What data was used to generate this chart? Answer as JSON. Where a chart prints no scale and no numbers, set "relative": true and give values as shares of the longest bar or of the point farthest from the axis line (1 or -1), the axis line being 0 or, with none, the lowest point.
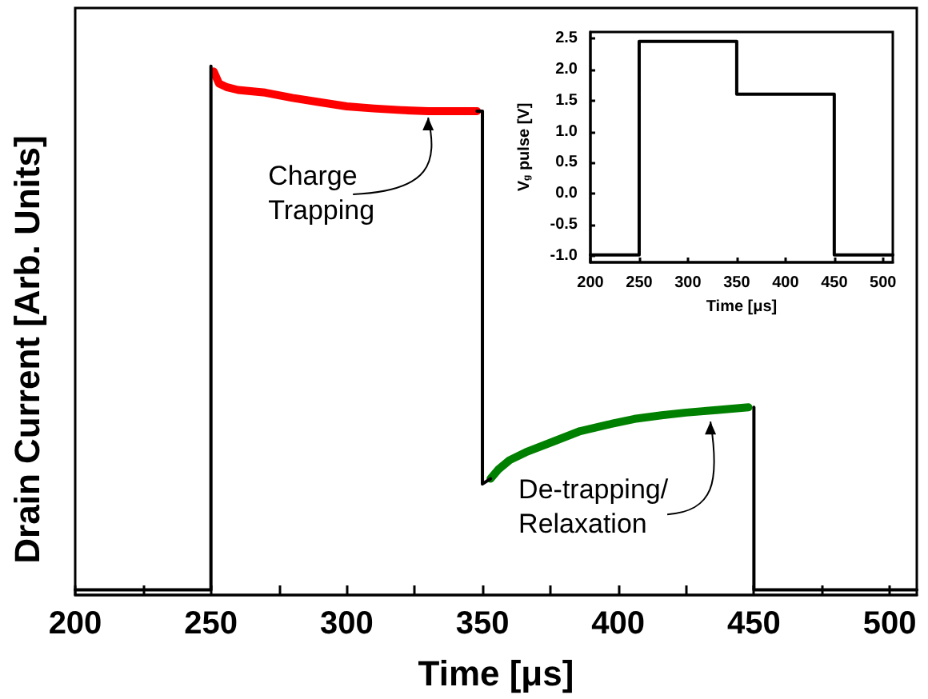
{
  "chart_data": [
    {
      "type": "line",
      "xlabel": "Time [μs]",
      "ylabel": "Drain Current [Arb. Units]",
      "relative": true,
      "tick_labels": "x",
      "marker": "none",
      "line_style": "solid",
      "xlim": [
        200,
        510
      ],
      "xticks": [
        200,
        {
          "value": 225,
          "label": null
        },
        250,
        {
          "value": 275,
          "label": null
        },
        300,
        {
          "value": 325,
          "label": null
        },
        350,
        {
          "value": 375,
          "label": null
        },
        400,
        {
          "value": 425,
          "label": null
        },
        450,
        {
          "value": 475,
          "label": null
        },
        500
      ],
      "annotations": [
        {
          "text": "Charge\nTrapping",
          "x": 330,
          "y": 0.915
        },
        {
          "text": "De-trapping/\nRelaxation",
          "x": 434,
          "y": 0.34
        }
      ],
      "series": [
        {
          "color": "#ff0000",
          "x": [
            251,
            253,
            256,
            260,
            270,
            280,
            290,
            300,
            310,
            320,
            330,
            340,
            348
          ],
          "values": [
            0.99,
            0.967,
            0.96,
            0.955,
            0.95,
            0.94,
            0.932,
            0.924,
            0.92,
            0.917,
            0.915,
            0.915,
            0.915
          ]
        },
        {
          "color": "#008000",
          "x": [
            353,
            356,
            360,
            366,
            376,
            386,
            396,
            406,
            416,
            425,
            437,
            448
          ],
          "values": [
            0.22,
            0.238,
            0.255,
            0.27,
            0.29,
            0.31,
            0.322,
            0.333,
            0.34,
            0.345,
            0.35,
            0.355
          ]
        },
        {
          "color": "#000000",
          "x": [
            200,
            225,
            250,
            250,
            300,
            348,
            350,
            350,
            353,
            400,
            450,
            450,
            480,
            510
          ],
          "values": [
            0.01,
            0.01,
            0.01,
            1,
            null,
            0.915,
            0.915,
            0.21,
            0.22,
            null,
            0.355,
            0.01,
            0.01,
            0.01
          ]
        }
      ]
    },
    {
      "type": "line",
      "xlabel": "Time [μs]",
      "ylabel": "V$_{g}$ pulse [V]",
      "marker": "none",
      "line_style": "solid",
      "xlim": [
        200,
        510
      ],
      "xticks": [
        200,
        250,
        300,
        350,
        400,
        450,
        500
      ],
      "ylim": [
        -1.1,
        2.6
      ],
      "yticks": [
        {
          "value": -1,
          "label": "-1.0"
        },
        -0.5,
        {
          "value": 0,
          "label": "0.0"
        },
        0.5,
        {
          "value": 1,
          "label": "1.0"
        },
        1.5,
        {
          "value": 2,
          "label": "2.0"
        },
        2.5
      ],
      "series": [
        {
          "color": "#000000",
          "x": [
            200,
            225,
            250,
            250,
            300,
            350,
            350,
            400,
            450,
            450,
            480,
            510
          ],
          "values": [
            -0.98,
            -0.98,
            -0.98,
            2.45,
            2.45,
            2.45,
            1.6,
            1.6,
            1.6,
            -0.98,
            -0.98,
            -0.98
          ]
        }
      ]
    }
  ]
}
